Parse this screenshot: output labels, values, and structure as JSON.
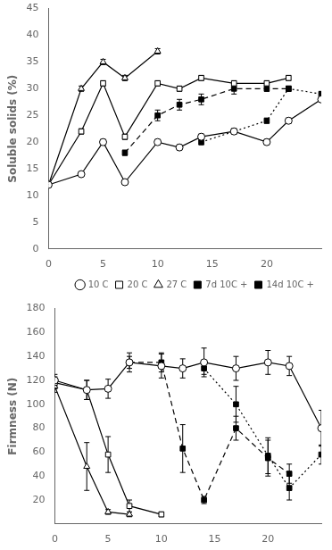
{
  "chart_data": [
    {
      "type": "line",
      "ylabel": "Soluble solids (%)",
      "xlim": [
        0,
        25
      ],
      "xticks": [
        0,
        5,
        10,
        15,
        20
      ],
      "ylim": [
        0,
        45
      ],
      "yticks": [
        0,
        5,
        10,
        15,
        20,
        25,
        30,
        35,
        40,
        45
      ],
      "grid": false,
      "legend": "lower right",
      "series": [
        {
          "name": "10 C",
          "color": "black",
          "marker": "open circle",
          "line_style": "solid",
          "x": [
            0,
            3,
            5,
            7,
            10,
            12,
            14,
            17,
            20,
            22,
            25
          ],
          "values": [
            12,
            14,
            20,
            12.5,
            20,
            19,
            21,
            22,
            20,
            24,
            28
          ],
          "yerr": [
            0.4,
            0.4,
            0.5,
            0.4,
            0.5,
            0.5,
            0.5,
            0.5,
            0.5,
            0.5,
            0.5
          ]
        },
        {
          "name": "20 C",
          "color": "black",
          "marker": "open square",
          "line_style": "solid",
          "x": [
            0,
            3,
            5,
            7,
            10,
            12,
            14,
            17,
            20,
            22
          ],
          "values": [
            12,
            22,
            31,
            21,
            31,
            30,
            32,
            31,
            31,
            32
          ],
          "yerr": [
            0.4,
            0.5,
            0.5,
            0.5,
            0.5,
            0.5,
            0.5,
            0.5,
            0.5,
            0.5
          ]
        },
        {
          "name": "27 C",
          "color": "black",
          "marker": "open triangle",
          "line_style": "solid",
          "x": [
            0,
            3,
            5,
            7,
            10
          ],
          "values": [
            12,
            30,
            35,
            32,
            37
          ],
          "yerr": [
            0.4,
            0.5,
            0.5,
            0.5,
            0.5
          ]
        },
        {
          "name": "7d 10C +",
          "color": "black",
          "marker": "filled square",
          "line_style": "dashed",
          "x": [
            7,
            10,
            12,
            14,
            17,
            20,
            22
          ],
          "values": [
            18,
            25,
            27,
            28,
            30,
            30,
            30
          ],
          "yerr": [
            0.5,
            1.0,
            1.0,
            1.0,
            1.0,
            0.5,
            0.5
          ]
        },
        {
          "name": "14d 10C +",
          "color": "black",
          "marker": "filled square",
          "line_style": "dotted",
          "x": [
            14,
            17,
            20,
            22,
            25
          ],
          "values": [
            20,
            22,
            24,
            30,
            29
          ],
          "yerr": [
            0.5,
            0.5,
            0.5,
            0.5,
            0.5
          ]
        }
      ]
    },
    {
      "type": "line",
      "ylabel": "Firmness (N)",
      "xlim": [
        0,
        25
      ],
      "xticks": [
        0,
        5,
        10,
        15,
        20
      ],
      "ylim": [
        0,
        180
      ],
      "yticks": [
        20,
        40,
        60,
        80,
        100,
        120,
        140,
        160,
        180
      ],
      "grid": false,
      "series": [
        {
          "name": "10 C",
          "color": "black",
          "marker": "open circle",
          "line_style": "solid",
          "x": [
            0,
            3,
            5,
            7,
            10,
            12,
            14,
            17,
            20,
            22,
            25
          ],
          "values": [
            120,
            112,
            113,
            135,
            132,
            130,
            135,
            130,
            135,
            132,
            80
          ],
          "yerr": [
            5,
            8,
            8,
            8,
            10,
            8,
            12,
            10,
            10,
            8,
            15
          ]
        },
        {
          "name": "20 C",
          "color": "black",
          "marker": "open square",
          "line_style": "solid",
          "x": [
            0,
            3,
            5,
            7,
            10
          ],
          "values": [
            118,
            112,
            58,
            15,
            8
          ],
          "yerr": [
            5,
            8,
            15,
            5,
            2
          ]
        },
        {
          "name": "27 C",
          "color": "black",
          "marker": "open triangle",
          "line_style": "solid",
          "x": [
            0,
            3,
            5,
            7
          ],
          "values": [
            115,
            48,
            10,
            8
          ],
          "yerr": [
            5,
            20,
            2,
            2
          ]
        },
        {
          "name": "7d 10C +",
          "color": "black",
          "marker": "filled square",
          "line_style": "dashed",
          "x": [
            7,
            10,
            12,
            14,
            17,
            20,
            22
          ],
          "values": [
            135,
            135,
            63,
            20,
            80,
            55,
            42
          ],
          "yerr": [
            5,
            8,
            20,
            3,
            10,
            15,
            8
          ]
        },
        {
          "name": "14d 10C +",
          "color": "black",
          "marker": "filled square",
          "line_style": "dotted",
          "x": [
            14,
            17,
            20,
            22,
            25
          ],
          "values": [
            130,
            100,
            57,
            30,
            58
          ],
          "yerr": [
            5,
            15,
            15,
            10,
            8
          ]
        }
      ]
    }
  ]
}
